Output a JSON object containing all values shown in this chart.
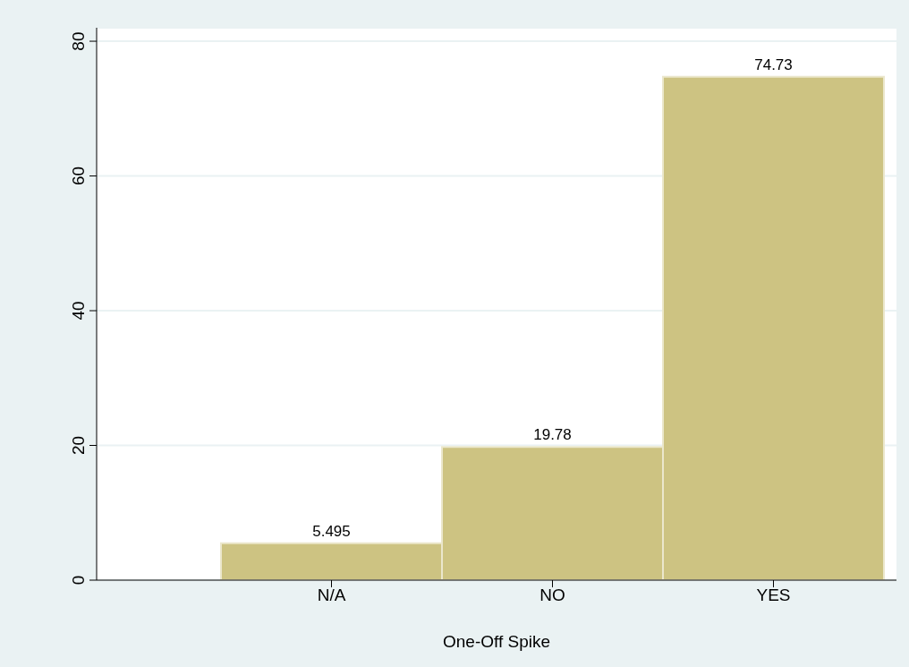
{
  "chart_data": {
    "type": "bar",
    "xlabel": "One-Off Spike",
    "categories": [
      "N/A",
      "NO",
      "YES"
    ],
    "values": [
      5.495,
      19.78,
      74.73
    ],
    "color": "#cdc382",
    "ylim": [
      0,
      82
    ],
    "yticks": [
      0,
      20,
      40,
      60,
      80
    ],
    "grid": "y",
    "data_labels": true
  }
}
